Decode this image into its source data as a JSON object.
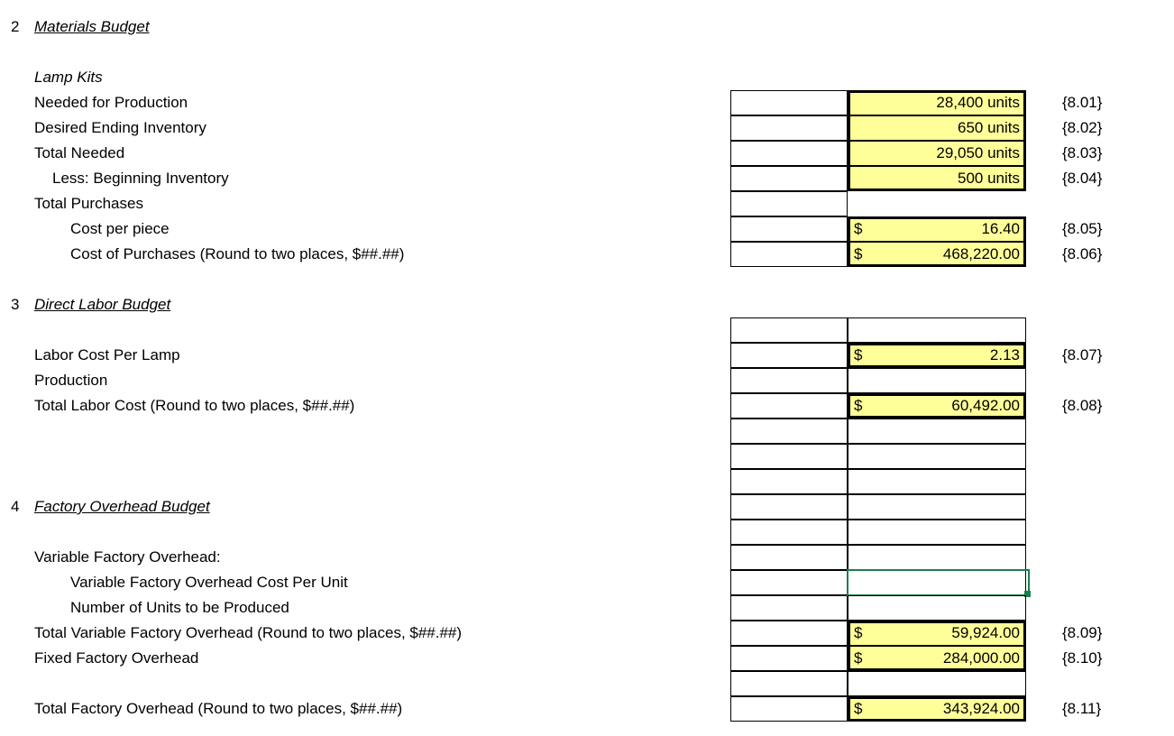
{
  "sections": {
    "materials": {
      "num": "2",
      "title": "Materials Budget",
      "sub": "Lamp Kits",
      "needed_label": "Needed for Production",
      "needed_val": "28,400 units",
      "needed_ref": "{8.01}",
      "ending_label": "Desired Ending Inventory",
      "ending_val": "650 units",
      "ending_ref": "{8.02}",
      "totalneeded_label": "Total Needed",
      "totalneeded_val": "29,050 units",
      "totalneeded_ref": "{8.03}",
      "lessbegin_label": "Less: Beginning Inventory",
      "lessbegin_val": "500 units",
      "lessbegin_ref": "{8.04}",
      "totalpurch_label": "Total Purchases",
      "costpp_label": "Cost per piece",
      "costpp_cur": "$",
      "costpp_val": "16.40",
      "costpp_ref": "{8.05}",
      "costpurch_label": "Cost of Purchases (Round to two places, $##.##)",
      "costpurch_cur": "$",
      "costpurch_val": "468,220.00",
      "costpurch_ref": "{8.06}"
    },
    "labor": {
      "num": "3",
      "title": "Direct Labor Budget",
      "cost_label": "Labor Cost Per Lamp",
      "cost_cur": "$",
      "cost_val": "2.13",
      "cost_ref": "{8.07}",
      "prod_label": "Production",
      "total_label": "Total Labor Cost  (Round to two places, $##.##)",
      "total_cur": "$",
      "total_val": "60,492.00",
      "total_ref": "{8.08}"
    },
    "overhead": {
      "num": "4",
      "title": "Factory Overhead Budget",
      "varhdr_label": "Variable Factory Overhead:",
      "varunit_label": "Variable Factory Overhead Cost Per Unit",
      "numunits_label": "Number of Units to be Produced",
      "totvar_label": "Total Variable Factory Overhead  (Round to two places, $##.##)",
      "totvar_cur": "$",
      "totvar_val": "59,924.00",
      "totvar_ref": "{8.09}",
      "fixed_label": "Fixed Factory Overhead",
      "fixed_cur": "$",
      "fixed_val": "284,000.00",
      "fixed_ref": "{8.10}",
      "total_label": "Total Factory Overhead  (Round to two places, $##.##)",
      "total_cur": "$",
      "total_val": "343,924.00",
      "total_ref": "{8.11}"
    }
  },
  "colors": {
    "highlight": "#ffff99",
    "selection": "#1b7f4e",
    "border": "#000000",
    "background": "#ffffff"
  }
}
